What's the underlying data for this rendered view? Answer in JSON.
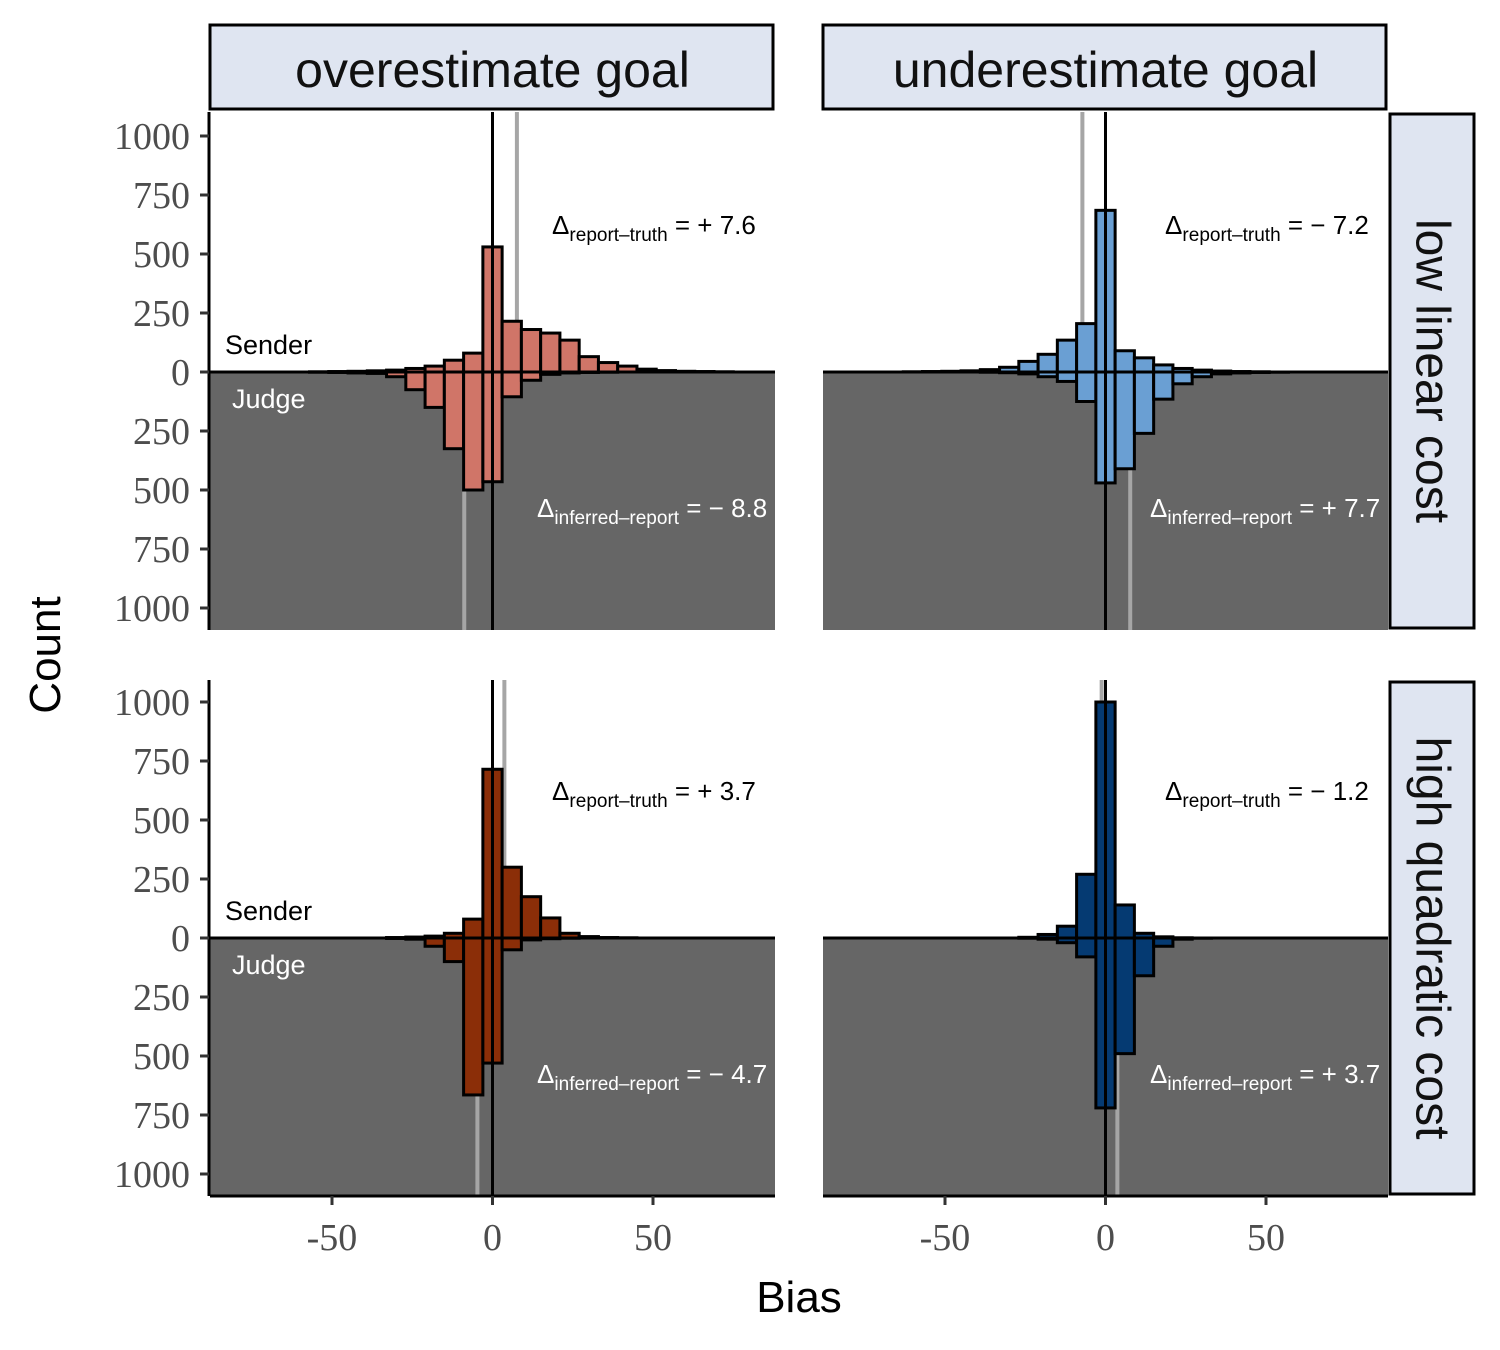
{
  "chart_data": {
    "type": "bar",
    "xlabel": "Bias",
    "ylabel": "Count",
    "xlim": [
      -88,
      88
    ],
    "ylim": [
      -1100,
      1100
    ],
    "x_ticks": [
      "-50",
      "0",
      "50"
    ],
    "y_ticks": [
      {
        "value": 1000,
        "label": "1000"
      },
      {
        "value": 750,
        "label": "750"
      },
      {
        "value": 500,
        "label": "500"
      },
      {
        "value": 250,
        "label": "250"
      },
      {
        "value": 0,
        "label": "0"
      },
      {
        "value": -250,
        "label": "250"
      },
      {
        "value": -500,
        "label": "500"
      },
      {
        "value": -750,
        "label": "750"
      },
      {
        "value": -1000,
        "label": "1000"
      }
    ],
    "col_labels": [
      "overestimate goal",
      "underestimate goal"
    ],
    "row_labels": [
      "low linear cost",
      "high quadratic cost"
    ],
    "sender_label": "Sender",
    "judge_label": "Judge",
    "bin_width": 6,
    "bin_centers": [
      -78,
      -72,
      -66,
      -60,
      -54,
      -48,
      -42,
      -36,
      -30,
      -24,
      -18,
      -12,
      -6,
      0,
      6,
      12,
      18,
      24,
      30,
      36,
      42,
      48,
      54,
      60,
      66,
      72,
      78
    ],
    "colors": {
      "low_over": "#d07568",
      "low_under": "#6a9fd3",
      "high_over": "#8b2e08",
      "high_under": "#053a72",
      "judge_bg": "#666666",
      "strip_bg": "#dfe5f1",
      "truth_line": "#000000",
      "shift_line": "#a6a6a6"
    },
    "panels": [
      {
        "row": 0,
        "col": 0,
        "fill": "low_over",
        "sender": [
          0,
          0,
          0,
          0,
          1,
          2,
          3,
          5,
          8,
          15,
          25,
          50,
          80,
          530,
          215,
          180,
          165,
          135,
          65,
          40,
          25,
          12,
          6,
          3,
          2,
          1,
          0
        ],
        "judge": [
          0,
          0,
          0,
          0,
          1,
          2,
          4,
          6,
          20,
          75,
          150,
          325,
          500,
          465,
          105,
          35,
          10,
          4,
          2,
          1,
          0,
          0,
          0,
          0,
          0,
          0,
          0
        ],
        "sender_shift": 7.6,
        "judge_shift": -8.8,
        "report_label": "report–truth",
        "report_value": "= + 7.6",
        "inferred_label": "inferred–report",
        "inferred_value": "= − 8.8"
      },
      {
        "row": 0,
        "col": 1,
        "fill": "low_under",
        "sender": [
          0,
          0,
          0,
          1,
          2,
          3,
          5,
          10,
          20,
          45,
          75,
          135,
          205,
          685,
          90,
          60,
          30,
          15,
          8,
          4,
          2,
          1,
          0,
          0,
          0,
          0,
          0
        ],
        "judge": [
          0,
          0,
          0,
          0,
          0,
          0,
          0,
          1,
          3,
          8,
          20,
          40,
          125,
          470,
          410,
          260,
          115,
          50,
          20,
          8,
          4,
          2,
          1,
          0,
          0,
          0,
          0
        ],
        "sender_shift": -7.2,
        "judge_shift": 7.7,
        "report_label": "report–truth",
        "report_value": "= − 7.2",
        "inferred_label": "inferred–report",
        "inferred_value": "= + 7.7"
      },
      {
        "row": 1,
        "col": 0,
        "fill": "high_over",
        "sender": [
          0,
          0,
          0,
          0,
          0,
          0,
          0,
          0,
          2,
          4,
          8,
          20,
          80,
          715,
          300,
          175,
          85,
          20,
          6,
          2,
          1,
          0,
          0,
          0,
          0,
          0,
          0
        ],
        "judge": [
          0,
          0,
          0,
          0,
          0,
          0,
          0,
          0,
          2,
          5,
          35,
          100,
          665,
          530,
          50,
          8,
          3,
          1,
          0,
          0,
          0,
          0,
          0,
          0,
          0,
          0,
          0
        ],
        "sender_shift": 3.7,
        "judge_shift": -4.7,
        "report_label": "report–truth",
        "report_value": "= + 3.7",
        "inferred_label": "inferred–report",
        "inferred_value": "= − 4.7"
      },
      {
        "row": 1,
        "col": 1,
        "fill": "high_under",
        "sender": [
          0,
          0,
          0,
          0,
          0,
          0,
          0,
          0,
          0,
          3,
          15,
          50,
          270,
          1000,
          140,
          20,
          5,
          1,
          0,
          0,
          0,
          0,
          0,
          0,
          0,
          0,
          0
        ],
        "judge": [
          0,
          0,
          0,
          0,
          0,
          0,
          0,
          0,
          0,
          1,
          5,
          20,
          80,
          720,
          490,
          160,
          35,
          5,
          1,
          0,
          0,
          0,
          0,
          0,
          0,
          0,
          0
        ],
        "sender_shift": -1.2,
        "judge_shift": 3.7,
        "report_label": "report–truth",
        "report_value": "= − 1.2",
        "inferred_label": "inferred–report",
        "inferred_value": "= + 3.7"
      }
    ]
  }
}
